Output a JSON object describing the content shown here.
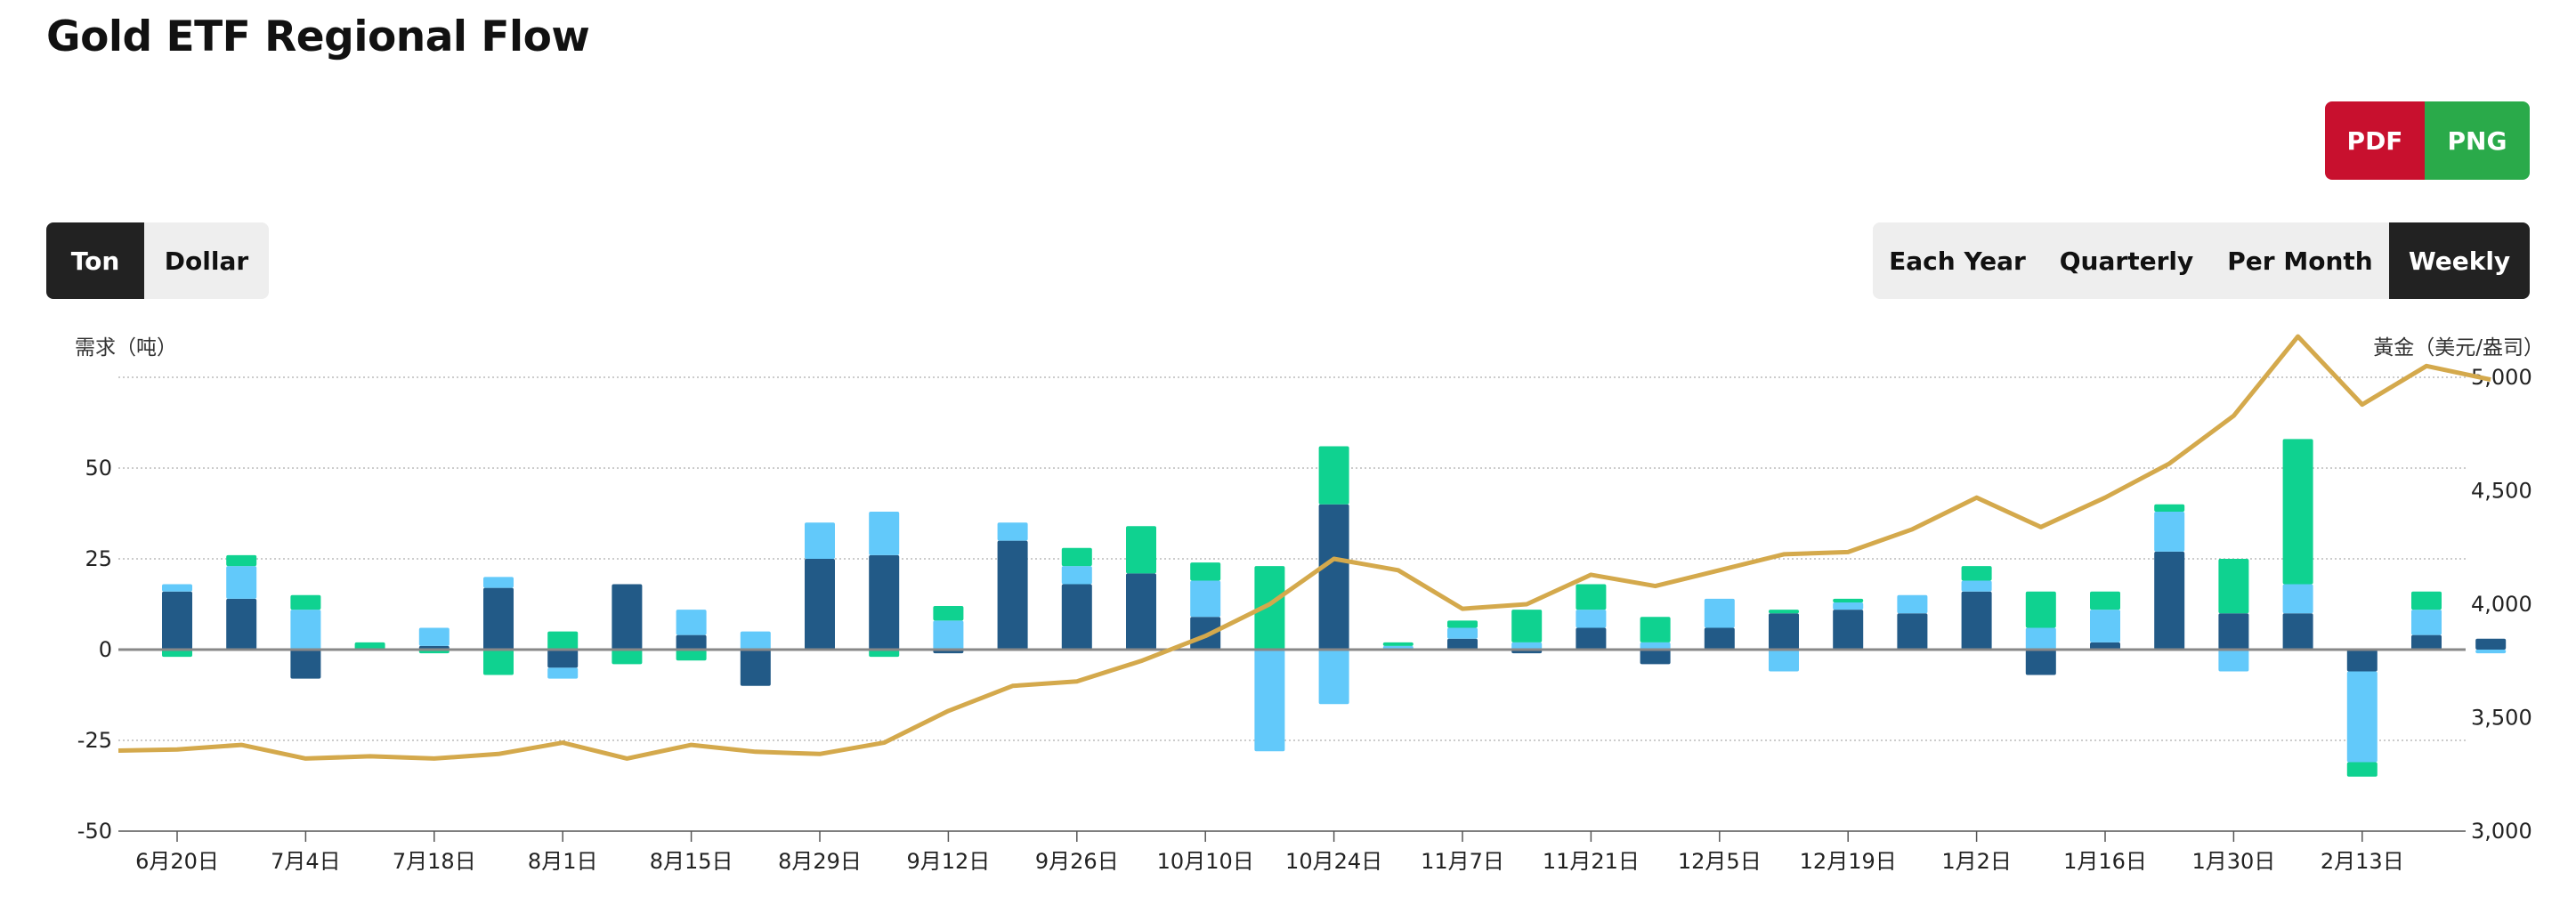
{
  "title": "Gold ETF Regional Flow",
  "export": {
    "pdf_label": "PDF",
    "png_label": "PNG",
    "pdf_color": "#c8102e",
    "png_color": "#2aaa4a"
  },
  "unit_toggle": {
    "options": [
      "Ton",
      "Dollar"
    ],
    "selected": "Ton"
  },
  "period_toggle": {
    "options": [
      "Each Year",
      "Quarterly",
      "Per Month",
      "Weekly"
    ],
    "selected": "Weekly"
  },
  "chart_data": {
    "type": "bar",
    "stacked": true,
    "left_axis": {
      "label": "需求（吨）",
      "ylim": [
        -50,
        75
      ],
      "ticks": [
        -50,
        -25,
        0,
        25,
        50
      ]
    },
    "right_axis": {
      "label": "黃金（美元/盎司）",
      "ylim": [
        3000,
        5000
      ],
      "ticks": [
        3000,
        3500,
        4000,
        4500,
        5000
      ]
    },
    "x_ticks": [
      "6月20日",
      "7月4日",
      "7月18日",
      "8月1日",
      "8月15日",
      "8月29日",
      "9月12日",
      "9月26日",
      "10月10日",
      "10月24日",
      "11月7日",
      "11月21日",
      "12月5日",
      "12月19日",
      "1月2日",
      "1月16日",
      "1月30日",
      "2月13日"
    ],
    "grid": true,
    "colors": {
      "dark_blue": "#225a87",
      "light_blue": "#62c9fa",
      "green": "#0fd290",
      "gold_line": "#d4a94c",
      "zero_line": "#888888"
    },
    "periods": 37,
    "series": [
      {
        "color": "dark_blue",
        "values": [
          16,
          14,
          -8,
          0,
          1,
          17,
          -5,
          18,
          4,
          -10,
          25,
          26,
          -1,
          30,
          18,
          21,
          9,
          0,
          40,
          0,
          3,
          -1,
          6,
          -4,
          6,
          10,
          11,
          10,
          16,
          -7,
          2,
          27,
          10,
          10,
          -6,
          4,
          3
        ]
      },
      {
        "color": "light_blue",
        "values": [
          2,
          9,
          11,
          0,
          5,
          3,
          -3,
          0,
          7,
          5,
          10,
          12,
          8,
          5,
          5,
          0,
          10,
          -28,
          -15,
          1,
          3,
          2,
          5,
          2,
          8,
          -6,
          2,
          5,
          3,
          6,
          9,
          11,
          -6,
          8,
          -25,
          7,
          -1
        ]
      },
      {
        "color": "green",
        "values": [
          -2,
          3,
          4,
          2,
          -1,
          -7,
          5,
          -4,
          -3,
          0,
          0,
          -2,
          4,
          0,
          5,
          13,
          5,
          23,
          16,
          1,
          2,
          9,
          7,
          7,
          0,
          1,
          1,
          0,
          4,
          10,
          5,
          2,
          15,
          40,
          -4,
          5,
          0
        ]
      },
      {
        "type": "line",
        "axis": "right",
        "color": "gold_line",
        "values": [
          3360,
          3380,
          3320,
          3330,
          3320,
          3340,
          3390,
          3320,
          3380,
          3350,
          3340,
          3390,
          3530,
          3640,
          3660,
          3750,
          3860,
          4000,
          4200,
          4150,
          3980,
          4000,
          4130,
          4080,
          4150,
          4220,
          4230,
          4330,
          4470,
          4340,
          4470,
          4620,
          4830,
          5180,
          4880,
          5050,
          4990
        ]
      }
    ]
  }
}
